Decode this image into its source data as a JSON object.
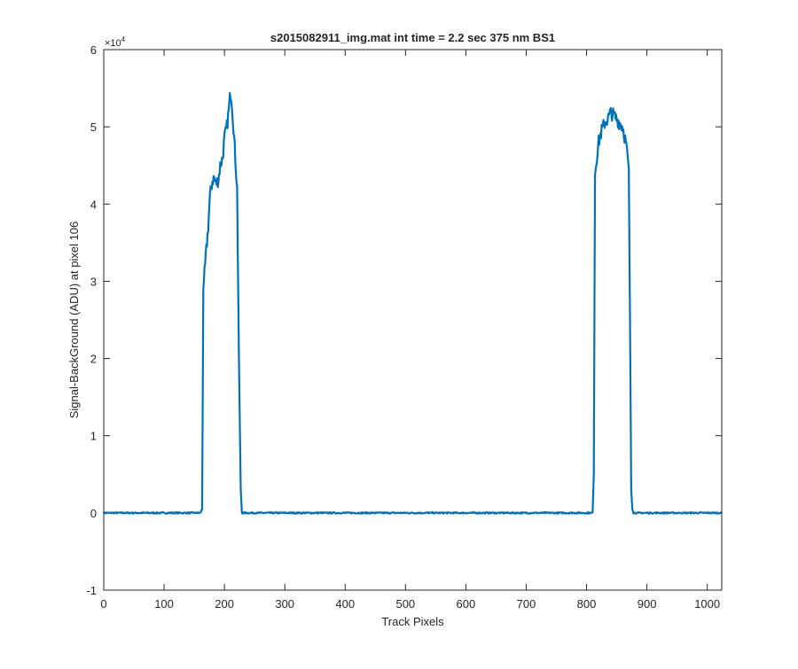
{
  "chart_data": {
    "type": "line",
    "title": "s2015082911_img.mat int time = 2.2 sec  375 nm BS1",
    "xlabel": "Track Pixels",
    "ylabel": "Signal-BackGround (ADU) at pixel 106",
    "y_multiplier_label": "×10",
    "y_multiplier_exponent": "4",
    "xlim": [
      0,
      1024
    ],
    "ylim": [
      -10000,
      60000
    ],
    "x_ticks": [
      0,
      100,
      200,
      300,
      400,
      500,
      600,
      700,
      800,
      900,
      1000
    ],
    "x_tick_labels": [
      "0",
      "100",
      "200",
      "300",
      "400",
      "500",
      "600",
      "700",
      "800",
      "900",
      "1000"
    ],
    "y_ticks": [
      -10000,
      0,
      10000,
      20000,
      30000,
      40000,
      50000,
      60000
    ],
    "y_tick_labels": [
      "-1",
      "0",
      "1",
      "2",
      "3",
      "4",
      "5",
      "6"
    ],
    "grid": false,
    "line_color": "#0072BD",
    "series": [
      {
        "x": [
          0,
          100,
          160,
          163,
          165,
          167,
          170,
          173,
          176,
          180,
          183,
          186,
          190,
          193,
          197,
          200,
          204,
          207,
          210,
          212,
          215,
          218,
          221,
          224,
          227,
          229,
          232,
          300,
          400,
          500,
          600,
          700,
          800,
          810,
          812,
          814,
          816,
          820,
          825,
          830,
          835,
          840,
          845,
          850,
          855,
          860,
          865,
          868,
          870,
          872,
          874,
          876,
          878,
          900,
          1000,
          1024
        ],
        "y": [
          0,
          0,
          0,
          500,
          29000,
          31000,
          34000,
          37000,
          41000,
          43000,
          43500,
          42600,
          43200,
          45000,
          46000,
          48500,
          50000,
          52000,
          54500,
          53500,
          50000,
          46000,
          42000,
          20000,
          3000,
          0,
          0,
          0,
          0,
          0,
          0,
          0,
          0,
          0,
          5000,
          44000,
          45500,
          48000,
          49500,
          50500,
          51000,
          51800,
          51500,
          51000,
          50500,
          50000,
          48000,
          46000,
          44000,
          25000,
          3000,
          500,
          0,
          0,
          0,
          0
        ]
      }
    ]
  }
}
